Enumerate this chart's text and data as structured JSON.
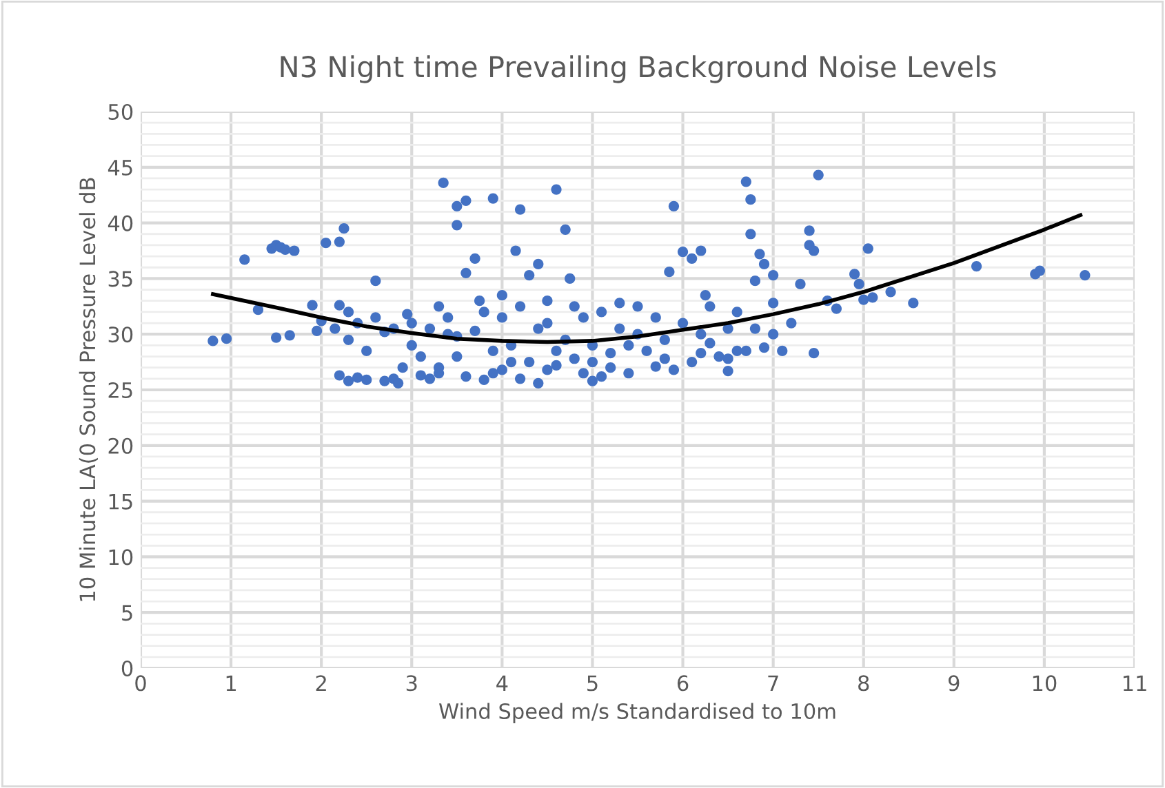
{
  "chart_data": {
    "type": "scatter",
    "title": "N3 Night time Prevailing Background Noise Levels",
    "xlabel": "Wind Speed m/s Standardised to 10m",
    "ylabel": "10 Minute LA(0 Sound Pressure Level dB",
    "xlim": [
      0,
      11
    ],
    "xticks": [
      0,
      1,
      2,
      3,
      4,
      5,
      6,
      7,
      8,
      9,
      10,
      11
    ],
    "ylim": [
      0,
      50
    ],
    "yticks": [
      0,
      5,
      10,
      15,
      20,
      25,
      30,
      35,
      40,
      45,
      50
    ],
    "grid": true,
    "legend": false,
    "series": [
      {
        "color": "#4472c4",
        "marker": "circle",
        "x": [
          0.8,
          0.95,
          1.15,
          1.3,
          1.45,
          1.5,
          1.55,
          1.6,
          1.7,
          1.5,
          1.65,
          1.9,
          1.95,
          2.05,
          2.2,
          2.25,
          2.2,
          2.15,
          2.2,
          2.3,
          2.4,
          2.5,
          2.6,
          2.7,
          2.8,
          2.85,
          2.6,
          2.8,
          3.0,
          2.95,
          3.1,
          3.2,
          3.3,
          3.35,
          3.5,
          3.6,
          3.5,
          3.3,
          3.4,
          3.6,
          3.7,
          3.75,
          3.9,
          3.9,
          4.0,
          4.1,
          4.15,
          4.2,
          4.3,
          4.4,
          4.5,
          4.6,
          4.7,
          4.75,
          4.8,
          4.4,
          4.6,
          4.9,
          5.0,
          5.1,
          5.2,
          5.3,
          5.5,
          5.7,
          5.9,
          5.85,
          6.0,
          6.1,
          6.2,
          6.25,
          6.3,
          6.5,
          6.6,
          6.7,
          6.75,
          6.75,
          6.8,
          6.85,
          6.9,
          7.0,
          7.0,
          7.3,
          7.4,
          7.45,
          7.5,
          7.4,
          7.45,
          7.6,
          7.7,
          7.9,
          7.95,
          8.05,
          8.0,
          8.1,
          8.3,
          8.55,
          9.25,
          9.9,
          9.95,
          10.45,
          3.0,
          3.2,
          3.4,
          3.5,
          3.6,
          3.7,
          3.8,
          3.9,
          4.0,
          4.1,
          4.2,
          4.3,
          4.4,
          4.5,
          4.5,
          4.7,
          4.8,
          4.9,
          5.0,
          5.1,
          5.2,
          5.3,
          5.4,
          5.5,
          5.6,
          5.7,
          5.8,
          5.9,
          6.0,
          6.1,
          6.2,
          6.3,
          6.4,
          6.5,
          6.6,
          6.7,
          6.8,
          6.9,
          7.0,
          7.1,
          7.2,
          2.3,
          2.4,
          2.5,
          2.7,
          2.9,
          3.1,
          3.3,
          3.5,
          3.8,
          4.0,
          4.2,
          4.6,
          5.0,
          5.4,
          5.8,
          6.2,
          6.5,
          2.0,
          2.3
        ],
        "values": [
          29.4,
          29.6,
          36.7,
          32.2,
          37.7,
          38.0,
          37.8,
          37.6,
          37.5,
          29.7,
          29.9,
          32.6,
          30.3,
          38.2,
          38.3,
          39.5,
          32.6,
          30.5,
          26.3,
          25.8,
          26.1,
          25.9,
          34.8,
          25.8,
          26.0,
          25.6,
          31.5,
          30.5,
          29.0,
          31.8,
          26.3,
          26.0,
          26.5,
          43.6,
          41.5,
          42.0,
          39.8,
          32.5,
          30.0,
          35.5,
          36.8,
          33.0,
          42.2,
          28.5,
          26.8,
          27.5,
          37.5,
          41.2,
          35.3,
          36.3,
          31.0,
          43.0,
          39.4,
          35.0,
          32.5,
          25.6,
          27.2,
          26.5,
          25.8,
          26.2,
          28.3,
          32.8,
          30.0,
          27.1,
          41.5,
          35.6,
          37.4,
          36.8,
          37.5,
          33.5,
          29.2,
          26.7,
          28.5,
          43.7,
          42.1,
          39.0,
          34.8,
          37.2,
          36.3,
          35.3,
          32.8,
          34.5,
          38.0,
          37.5,
          44.3,
          39.3,
          28.3,
          33.0,
          32.3,
          35.4,
          34.5,
          37.7,
          33.1,
          33.3,
          33.8,
          32.8,
          36.1,
          35.4,
          35.7,
          35.3,
          31.0,
          30.5,
          31.5,
          28.0,
          26.2,
          30.3,
          32.0,
          26.5,
          31.5,
          29.0,
          32.5,
          27.5,
          30.5,
          33.0,
          26.8,
          29.5,
          27.8,
          31.5,
          29.0,
          32.0,
          27.0,
          30.5,
          26.5,
          32.5,
          28.5,
          31.5,
          29.5,
          26.8,
          31.0,
          27.5,
          30.0,
          32.5,
          28.0,
          30.5,
          32.0,
          28.5,
          30.5,
          28.8,
          30.0,
          28.5,
          31.0,
          29.5,
          31.0,
          28.5,
          30.2,
          27.0,
          28.0,
          27.0,
          29.8,
          25.9,
          33.5,
          26.0,
          28.5,
          27.5,
          29.0,
          27.8,
          28.3,
          27.8,
          31.2,
          32.0
        ]
      },
      {
        "type": "line",
        "color": "#000000",
        "marker": "none",
        "line_style": "solid",
        "x": [
          0.8,
          1.5,
          2,
          2.5,
          3,
          3.5,
          4,
          4.5,
          5,
          5.5,
          6,
          6.5,
          7,
          7.5,
          8,
          8.5,
          9,
          9.5,
          10,
          10.4
        ],
        "values": [
          33.6,
          32.4,
          31.5,
          30.7,
          30.1,
          29.6,
          29.4,
          29.3,
          29.4,
          29.8,
          30.4,
          31.0,
          31.8,
          32.7,
          33.8,
          35.1,
          36.4,
          37.9,
          39.4,
          40.7
        ]
      }
    ]
  }
}
